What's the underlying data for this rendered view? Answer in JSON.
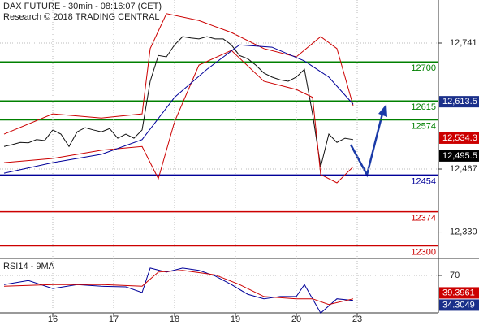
{
  "chart_data": [
    {
      "type": "line",
      "title": "DAX FUTURE - 30min - 08:16:07 (CET)",
      "subtitle": "Research © 2018 TRADING CENTRAL",
      "xlim": [
        -0.5,
        53.5
      ],
      "ylim": [
        12272.6,
        12834.7
      ],
      "yticks": [
        {
          "value": 12741,
          "label": "12,741"
        },
        {
          "value": 12467,
          "label": "12,467"
        },
        {
          "value": 12330,
          "label": "12,330"
        }
      ],
      "grid": true,
      "series": [
        {
          "color": "#111111",
          "x": [
            0,
            1,
            2,
            3,
            4,
            5,
            6,
            7,
            8,
            9,
            10,
            11,
            12,
            13,
            14,
            15,
            16,
            17,
            18,
            19,
            20,
            21,
            22,
            23,
            24,
            25,
            26,
            27,
            28,
            29,
            30,
            31,
            32,
            33,
            34,
            35,
            36,
            37,
            38,
            39,
            40,
            41,
            42,
            43
          ],
          "values": [
            12516,
            12520,
            12525,
            12524,
            12531,
            12529,
            12552,
            12543,
            12516,
            12548,
            12557,
            12552,
            12548,
            12555,
            12534,
            12543,
            12534,
            12552,
            12658,
            12714,
            12711,
            12737,
            12755,
            12752,
            12750,
            12755,
            12750,
            12750,
            12737,
            12714,
            12707,
            12693,
            12676,
            12667,
            12661,
            12658,
            12667,
            12684,
            12587,
            12472,
            12543,
            12525,
            12534,
            12531
          ]
        },
        {
          "color": "#cc0000",
          "x": [
            0,
            6,
            12,
            17,
            18,
            20,
            24,
            28,
            32,
            36,
            39,
            41,
            43
          ],
          "values": [
            12543,
            12587,
            12578,
            12587,
            12729,
            12805,
            12790,
            12764,
            12729,
            12711,
            12755,
            12729,
            12605
          ]
        },
        {
          "color": "#cc0000",
          "x": [
            0,
            6,
            12,
            17,
            18,
            19,
            21,
            24,
            28,
            32,
            36,
            38,
            39,
            41,
            43
          ],
          "values": [
            12481,
            12490,
            12508,
            12516,
            12481,
            12446,
            12570,
            12693,
            12725,
            12658,
            12640,
            12623,
            12455,
            12437,
            12472
          ]
        },
        {
          "color": "#000099",
          "x": [
            0,
            6,
            12,
            17,
            21,
            25,
            29,
            33,
            37,
            40,
            43
          ],
          "values": [
            12458,
            12481,
            12499,
            12531,
            12623,
            12684,
            12737,
            12732,
            12702,
            12667,
            12608
          ]
        }
      ],
      "levels": [
        {
          "value": 12700,
          "color": "#008000"
        },
        {
          "value": 12615,
          "color": "#008000"
        },
        {
          "value": 12574,
          "color": "#008000"
        },
        {
          "value": 12454,
          "color": "#000099"
        },
        {
          "value": 12374,
          "color": "#cc0000"
        },
        {
          "value": 12300,
          "color": "#cc0000"
        }
      ],
      "price_labels": [
        {
          "value": 12613.5,
          "label": "12,613.5",
          "color": "#1a2f8a"
        },
        {
          "value": 12534.3,
          "label": "12,534.3",
          "color": "#cc0000"
        },
        {
          "value": 12495.5,
          "label": "12,495.5",
          "color": "#000000"
        }
      ]
    },
    {
      "type": "line",
      "title": "RSI14 - 9MA",
      "xlim": [
        -0.5,
        53.5
      ],
      "ylim": [
        0,
        100
      ],
      "yticks": [
        70
      ],
      "xticks": [
        {
          "value": 6,
          "label": "16"
        },
        {
          "value": 13.5,
          "label": "17"
        },
        {
          "value": 21,
          "label": "18"
        },
        {
          "value": 28.5,
          "label": "19"
        },
        {
          "value": 36,
          "label": "20"
        },
        {
          "value": 43.5,
          "label": "23"
        }
      ],
      "grid": true,
      "series": [
        {
          "color": "#000099",
          "x": [
            0,
            3,
            6,
            9,
            12,
            15,
            17,
            18,
            20,
            22,
            24,
            26,
            28,
            30,
            32,
            34,
            36,
            37,
            39,
            41,
            43
          ],
          "values": [
            54,
            61,
            47,
            54,
            51,
            50,
            40,
            83,
            76,
            83,
            79,
            69,
            54,
            37,
            29,
            33,
            33,
            54,
            4,
            29,
            26
          ]
        },
        {
          "color": "#cc0000",
          "x": [
            0,
            6,
            12,
            17,
            19,
            22,
            26,
            29,
            32,
            36,
            38,
            40,
            43
          ],
          "values": [
            51,
            54,
            54,
            51,
            76,
            79,
            71,
            54,
            33,
            29,
            29,
            19,
            29
          ]
        }
      ],
      "price_labels": [
        {
          "value": 39.3961,
          "label": "39.3961",
          "color": "#cc0000"
        },
        {
          "value": 34.3049,
          "label": "34.3049",
          "color": "#1a2f8a"
        }
      ]
    }
  ]
}
